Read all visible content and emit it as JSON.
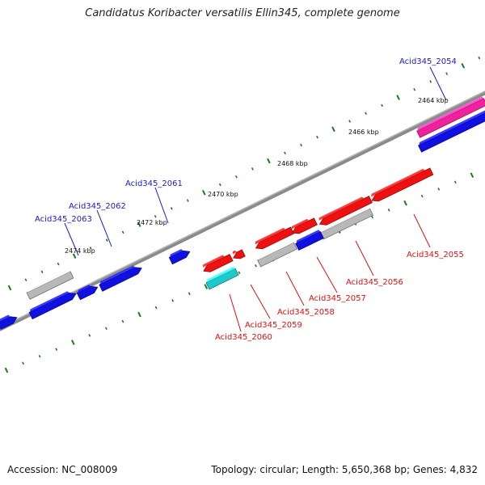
{
  "title": "Candidatus Koribacter versatilis Ellin345, complete genome",
  "footer": {
    "accession": "Accession: NC_008009",
    "topology": "Topology: circular; Length: 5,650,368 bp; Genes: 4,832"
  },
  "colors": {
    "backbone": "#808080",
    "tick": "#1e7a1e",
    "forward_gene_label": "#1a1acc",
    "reverse_gene_label": "#dd1111",
    "blue_gene": "#1010e0",
    "red_gene": "#ee1111",
    "grey_gene": "#b8b8b8",
    "magenta_gene": "#ee2299",
    "cyan_gene": "#20c8c8"
  },
  "scale_labels": [
    "2464 kbp",
    "2466 kbp",
    "2468 kbp",
    "2470 kbp",
    "2472 kbp",
    "2474 kbp"
  ],
  "gene_labels": {
    "forward": [
      "Acid345_2054",
      "Acid345_2061",
      "Acid345_2062",
      "Acid345_2063"
    ],
    "reverse": [
      "Acid345_2055",
      "Acid345_2056",
      "Acid345_2057",
      "Acid345_2058",
      "Acid345_2059",
      "Acid345_2060"
    ]
  }
}
